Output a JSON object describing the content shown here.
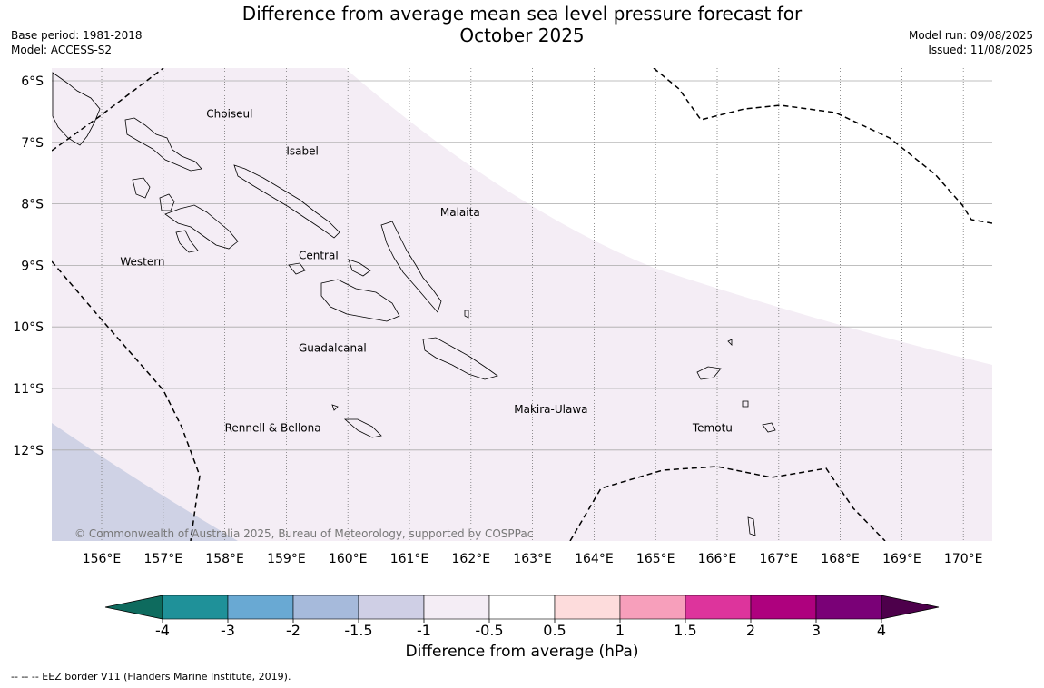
{
  "title_line1": "Difference from average mean sea level pressure forecast for",
  "title_line2": "October 2025",
  "base_period": "Base period: 1981-2018",
  "model": "Model: ACCESS-S2",
  "model_run": "Model run: 09/08/2025",
  "issued": "Issued: 11/08/2025",
  "copyright": "© Commonwealth of Australia 2025, Bureau of Meteorology, supported by COSPPac",
  "lat_labels": [
    "6°S",
    "7°S",
    "8°S",
    "9°S",
    "10°S",
    "11°S",
    "12°S"
  ],
  "lon_labels": [
    "156°E",
    "157°E",
    "158°E",
    "159°E",
    "160°E",
    "161°E",
    "162°E",
    "163°E",
    "164°E",
    "165°E",
    "166°E",
    "167°E",
    "168°E",
    "169°E",
    "170°E"
  ],
  "regions": [
    {
      "name": "Choiseul",
      "lon": 157.7,
      "lat": -6.6
    },
    {
      "name": "Isabel",
      "lon": 159.0,
      "lat": -7.2
    },
    {
      "name": "Malaita",
      "lon": 161.5,
      "lat": -8.2
    },
    {
      "name": "Western",
      "lon": 156.3,
      "lat": -9.0
    },
    {
      "name": "Central",
      "lon": 159.2,
      "lat": -8.9
    },
    {
      "name": "Guadalcanal",
      "lon": 159.2,
      "lat": -10.4
    },
    {
      "name": "Makira-Ulawa",
      "lon": 162.7,
      "lat": -11.4
    },
    {
      "name": "Rennell & Bellona",
      "lon": 158.0,
      "lat": -11.7
    },
    {
      "name": "Temotu",
      "lon": 165.6,
      "lat": -11.7
    }
  ],
  "colorbar": {
    "label": "Difference from average (hPa)",
    "ticks": [
      "-4",
      "-3",
      "-2",
      "-1.5",
      "-1",
      "-0.5",
      "0.5",
      "1",
      "1.5",
      "2",
      "3",
      "4"
    ],
    "colors": [
      "#0e6b5e",
      "#1f9199",
      "#69a9d3",
      "#a6badb",
      "#cfcfe5",
      "#f4edf5",
      "#ffffff",
      "#fddcdc",
      "#f79fbb",
      "#dd349c",
      "#ae017e",
      "#7a0177",
      "#4d004b"
    ]
  },
  "footnote": "--  --  -- EEZ border V11 (Flanders Marine Institute, 2019)."
}
